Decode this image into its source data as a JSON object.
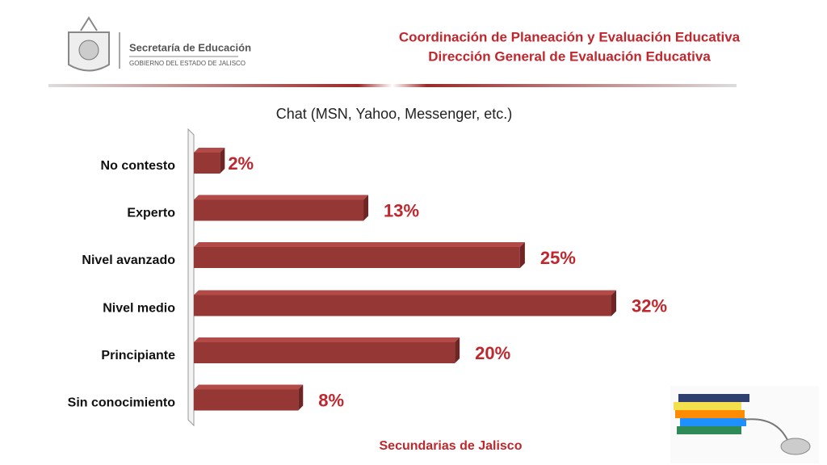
{
  "header": {
    "org": "Secretaría de Educación",
    "gov": "GOBIERNO DEL ESTADO DE JALISCO",
    "line1": "Coordinación de Planeación y Evaluación Educativa",
    "line2": "Dirección General de Evaluación Educativa"
  },
  "chart_data": {
    "type": "bar",
    "orientation": "horizontal",
    "title": "Chat (MSN, Yahoo, Messenger, etc.)",
    "categories": [
      "No contesto",
      "Experto",
      "Nivel avanzado",
      "Nivel medio",
      "Principiante",
      "Sin conocimiento"
    ],
    "values": [
      2,
      13,
      25,
      32,
      20,
      8
    ],
    "value_labels": [
      "2%",
      "13%",
      "25%",
      "32%",
      "20%",
      "8%"
    ],
    "color": "#953735",
    "footer": "Secundarias de Jalisco"
  }
}
